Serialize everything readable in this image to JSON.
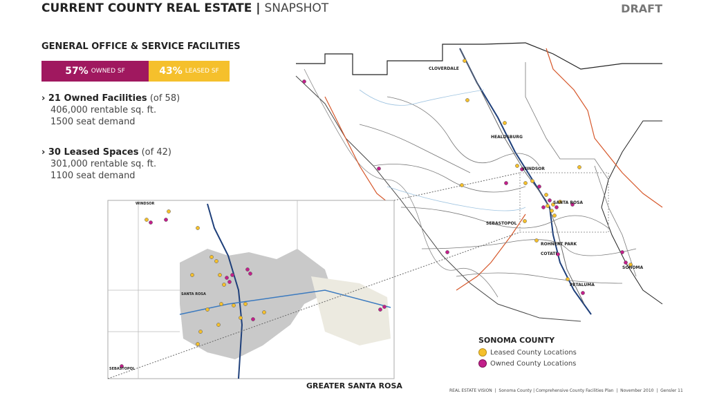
{
  "header": {
    "title": "CURRENT COUNTY REAL ESTATE",
    "subtitle": "SNAPSHOT",
    "status": "DRAFT"
  },
  "section": {
    "title": "GENERAL OFFICE & SERVICE FACILITIES",
    "split_bar": {
      "owned_pct": "57%",
      "owned_label": "OWNED SF",
      "leased_pct": "43%",
      "leased_label": "LEASED SF"
    },
    "items": [
      {
        "heading": "21 Owned Facilities",
        "note": "(of 58)",
        "lines": [
          "406,000 rentable sq. ft.",
          "1500 seat demand"
        ]
      },
      {
        "heading": "30 Leased Spaces",
        "note": "(of 42)",
        "lines": [
          "301,000 rentable sq. ft.",
          "1100 seat demand"
        ]
      }
    ]
  },
  "map": {
    "places": [
      "CLOVERDALE",
      "HEALDSBURG",
      "WINDSOR",
      "SANTA ROSA",
      "SEBASTOPOL",
      "ROHNERT PARK",
      "COTATI",
      "SONOMA",
      "PETALUMA"
    ],
    "legend": {
      "title": "SONOMA COUNTY",
      "items": [
        "Leased County Locations",
        "Owned County Locations"
      ]
    }
  },
  "inset": {
    "places": [
      "WINDSOR",
      "SANTA ROSA",
      "SEBASTOPOL"
    ],
    "caption": "GREATER SANTA ROSA"
  },
  "footer": {
    "text": "REAL ESTATE VISION  |  Sonoma County | Comprehensive County Facilities Plan  |  November 2010  |  Gensler",
    "page": "11"
  }
}
